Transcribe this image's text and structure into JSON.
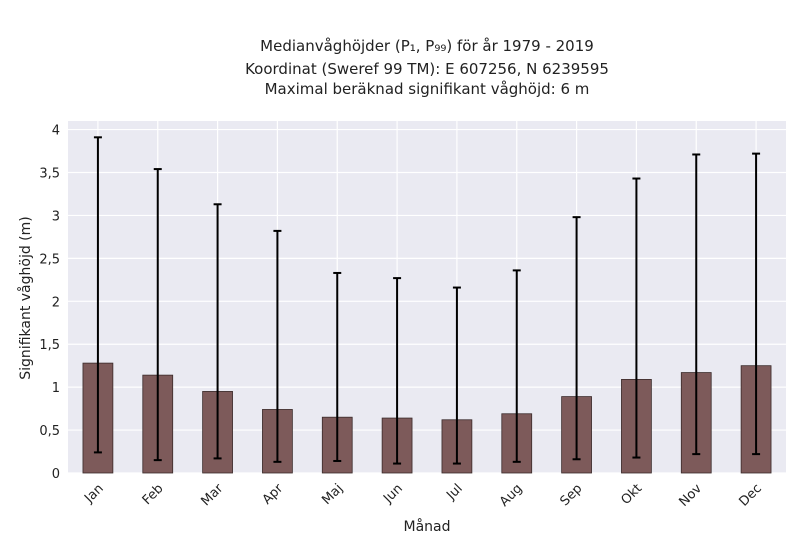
{
  "chart_data": {
    "type": "bar",
    "title": [
      "Medianvåghöjder (P₁, P₉₉) för år 1979 - 2019",
      "Koordinat (Sweref 99 TM): E 607256, N 6239595",
      "Maximal beräknad signifikant våghöjd: 6 m"
    ],
    "xlabel": "Månad",
    "ylabel": "Signifikant våghöjd (m)",
    "categories": [
      "Jan",
      "Feb",
      "Mar",
      "Apr",
      "Maj",
      "Jun",
      "Jul",
      "Aug",
      "Sep",
      "Okt",
      "Nov",
      "Dec"
    ],
    "values": [
      1.28,
      1.14,
      0.95,
      0.74,
      0.65,
      0.64,
      0.62,
      0.69,
      0.89,
      1.09,
      1.17,
      1.25
    ],
    "error_low": [
      0.24,
      0.15,
      0.17,
      0.13,
      0.14,
      0.11,
      0.11,
      0.13,
      0.16,
      0.18,
      0.22,
      0.22
    ],
    "error_high": [
      3.91,
      3.54,
      3.13,
      2.82,
      2.33,
      2.27,
      2.16,
      2.36,
      2.98,
      3.43,
      3.71,
      3.72
    ],
    "ylim": [
      0,
      4.1
    ],
    "yticks": [
      0,
      0.5,
      1,
      1.5,
      2,
      2.5,
      3,
      3.5,
      4
    ],
    "ytick_labels": [
      "0",
      "0,5",
      "1",
      "1,5",
      "2",
      "2,5",
      "3",
      "3,5",
      "4"
    ],
    "grid": true,
    "colors": {
      "bar": "#7d5a5a",
      "bar_edge": "#3a2a2a",
      "error_bar": "#000000",
      "plot_background": "#eaeaf2",
      "grid": "#ffffff"
    }
  }
}
